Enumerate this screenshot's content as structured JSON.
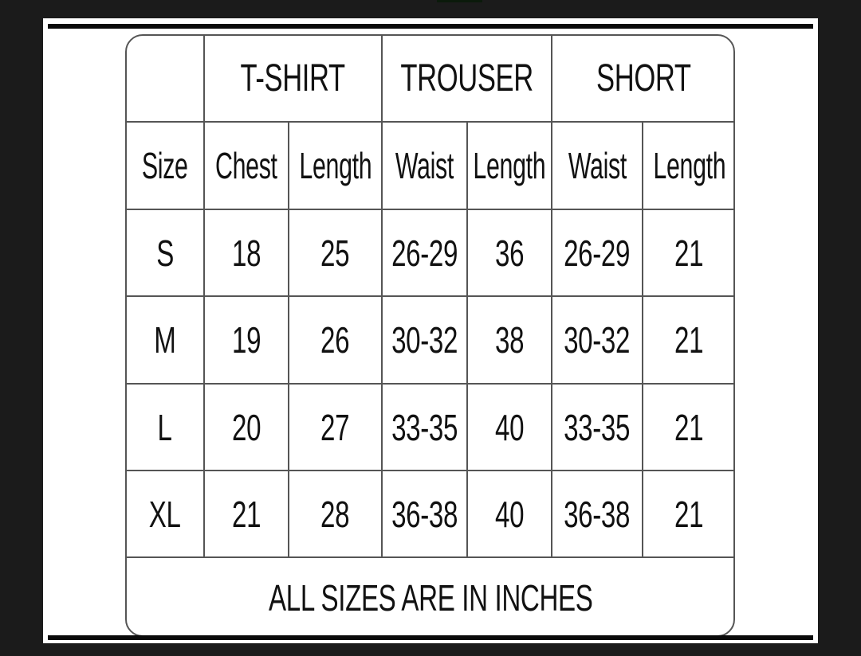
{
  "size_chart": {
    "groups": [
      "T-SHIRT",
      "TROUSER",
      "SHORT"
    ],
    "columns": [
      "Size",
      "Chest",
      "Length",
      "Waist",
      "Length",
      "Waist",
      "Length"
    ],
    "rows": [
      [
        "S",
        "18",
        "25",
        "26-29",
        "36",
        "26-29",
        "21"
      ],
      [
        "M",
        "19",
        "26",
        "30-32",
        "38",
        "30-32",
        "21"
      ],
      [
        "L",
        "20",
        "27",
        "33-35",
        "40",
        "33-35",
        "21"
      ],
      [
        "XL",
        "21",
        "28",
        "36-38",
        "40",
        "36-38",
        "21"
      ]
    ],
    "footer": "ALL SIZES ARE IN INCHES"
  }
}
